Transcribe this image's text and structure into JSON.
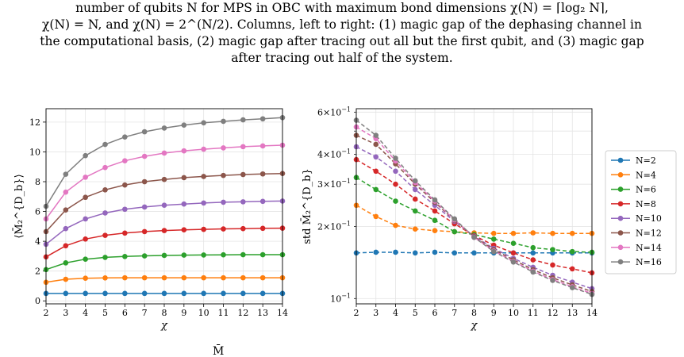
{
  "caption": {
    "lines": [
      "number of qubits N for MPS in OBC with maximum bond dimensions χ(N) = ⌈log₂ N⌉,",
      "χ(N) = N, and χ(N) = 2^(N/2). Columns, left to right: (1) magic gap of the dephasing channel in",
      "the computational basis, (2) magic gap after tracing out all but the first qubit, and (3) magic gap",
      "after tracing out half of the system."
    ]
  },
  "bottom_fragment": "M̄",
  "colors": {
    "N=2": "#1f77b4",
    "N=4": "#ff7f0e",
    "N=6": "#2ca02c",
    "N=8": "#d62728",
    "N=10": "#9467bd",
    "N=12": "#8c564b",
    "N=14": "#e377c2",
    "N=16": "#7f7f7f"
  },
  "chart_data": [
    {
      "type": "line",
      "xlabel": "χ",
      "ylabel": "⟨M̄₂^{D_b}⟩",
      "x": [
        2,
        3,
        4,
        5,
        6,
        7,
        8,
        9,
        10,
        11,
        12,
        13,
        14
      ],
      "xticks": [
        "2",
        "3",
        "4",
        "5",
        "6",
        "7",
        "8",
        "9",
        "10",
        "11",
        "12",
        "13",
        "14"
      ],
      "yticks": [
        "0",
        "2",
        "4",
        "6",
        "8",
        "10",
        "12"
      ],
      "ylim": [
        -0.2,
        12.9
      ],
      "grid": true,
      "marker": "circle",
      "series": [
        {
          "name": "N=2",
          "values": [
            0.5,
            0.5,
            0.5,
            0.5,
            0.5,
            0.5,
            0.5,
            0.5,
            0.5,
            0.5,
            0.5,
            0.5,
            0.5
          ]
        },
        {
          "name": "N=4",
          "values": [
            1.25,
            1.45,
            1.52,
            1.54,
            1.55,
            1.55,
            1.55,
            1.55,
            1.55,
            1.55,
            1.55,
            1.55,
            1.55
          ]
        },
        {
          "name": "N=6",
          "values": [
            2.1,
            2.55,
            2.8,
            2.92,
            2.98,
            3.02,
            3.05,
            3.07,
            3.08,
            3.09,
            3.1,
            3.1,
            3.1
          ]
        },
        {
          "name": "N=8",
          "values": [
            2.95,
            3.7,
            4.15,
            4.4,
            4.55,
            4.65,
            4.72,
            4.77,
            4.8,
            4.83,
            4.85,
            4.87,
            4.88
          ]
        },
        {
          "name": "N=10",
          "values": [
            3.8,
            4.85,
            5.5,
            5.9,
            6.15,
            6.3,
            6.42,
            6.5,
            6.57,
            6.62,
            6.65,
            6.68,
            6.7
          ]
        },
        {
          "name": "N=12",
          "values": [
            4.65,
            6.1,
            6.95,
            7.45,
            7.78,
            8.0,
            8.15,
            8.27,
            8.35,
            8.42,
            8.48,
            8.52,
            8.55
          ]
        },
        {
          "name": "N=14",
          "values": [
            5.5,
            7.3,
            8.3,
            8.95,
            9.4,
            9.7,
            9.92,
            10.07,
            10.18,
            10.27,
            10.35,
            10.4,
            10.45
          ]
        },
        {
          "name": "N=16",
          "values": [
            6.35,
            8.5,
            9.75,
            10.5,
            11.0,
            11.35,
            11.6,
            11.8,
            11.95,
            12.05,
            12.15,
            12.22,
            12.3
          ]
        }
      ]
    },
    {
      "type": "line",
      "xlabel": "χ",
      "ylabel": "std M̄₂^{D_b}",
      "yscale": "log",
      "linestyle": "dashed",
      "x": [
        2,
        3,
        4,
        5,
        6,
        7,
        8,
        9,
        10,
        11,
        12,
        13,
        14
      ],
      "xticks": [
        "2",
        "3",
        "4",
        "5",
        "6",
        "7",
        "8",
        "9",
        "10",
        "11",
        "12",
        "13",
        "14"
      ],
      "yticks": [
        "10^-1",
        "2×10^-1",
        "3×10^-1",
        "4×10^-1",
        "6×10^-1"
      ],
      "ylim": [
        0.095,
        0.62
      ],
      "grid": true,
      "marker": "circle",
      "legend": "outside-right",
      "series": [
        {
          "name": "N=2",
          "values": [
            0.155,
            0.156,
            0.156,
            0.155,
            0.156,
            0.155,
            0.155,
            0.155,
            0.155,
            0.155,
            0.155,
            0.155,
            0.155
          ]
        },
        {
          "name": "N=4",
          "values": [
            0.245,
            0.22,
            0.202,
            0.195,
            0.192,
            0.19,
            0.188,
            0.187,
            0.187,
            0.188,
            0.187,
            0.187,
            0.187
          ]
        },
        {
          "name": "N=6",
          "values": [
            0.32,
            0.285,
            0.255,
            0.232,
            0.212,
            0.19,
            0.185,
            0.177,
            0.17,
            0.163,
            0.16,
            0.157,
            0.156
          ]
        },
        {
          "name": "N=8",
          "values": [
            0.38,
            0.34,
            0.3,
            0.26,
            0.232,
            0.205,
            0.183,
            0.167,
            0.155,
            0.145,
            0.138,
            0.133,
            0.128
          ]
        },
        {
          "name": "N=10",
          "values": [
            0.43,
            0.39,
            0.34,
            0.285,
            0.245,
            0.21,
            0.182,
            0.162,
            0.147,
            0.135,
            0.125,
            0.117,
            0.11
          ]
        },
        {
          "name": "N=12",
          "values": [
            0.48,
            0.44,
            0.365,
            0.3,
            0.252,
            0.212,
            0.181,
            0.16,
            0.145,
            0.132,
            0.122,
            0.114,
            0.107
          ]
        },
        {
          "name": "N=14",
          "values": [
            0.52,
            0.465,
            0.375,
            0.305,
            0.255,
            0.213,
            0.18,
            0.158,
            0.143,
            0.13,
            0.12,
            0.112,
            0.105
          ]
        },
        {
          "name": "N=16",
          "values": [
            0.555,
            0.48,
            0.385,
            0.31,
            0.258,
            0.215,
            0.18,
            0.157,
            0.142,
            0.129,
            0.119,
            0.111,
            0.104
          ]
        }
      ]
    }
  ]
}
